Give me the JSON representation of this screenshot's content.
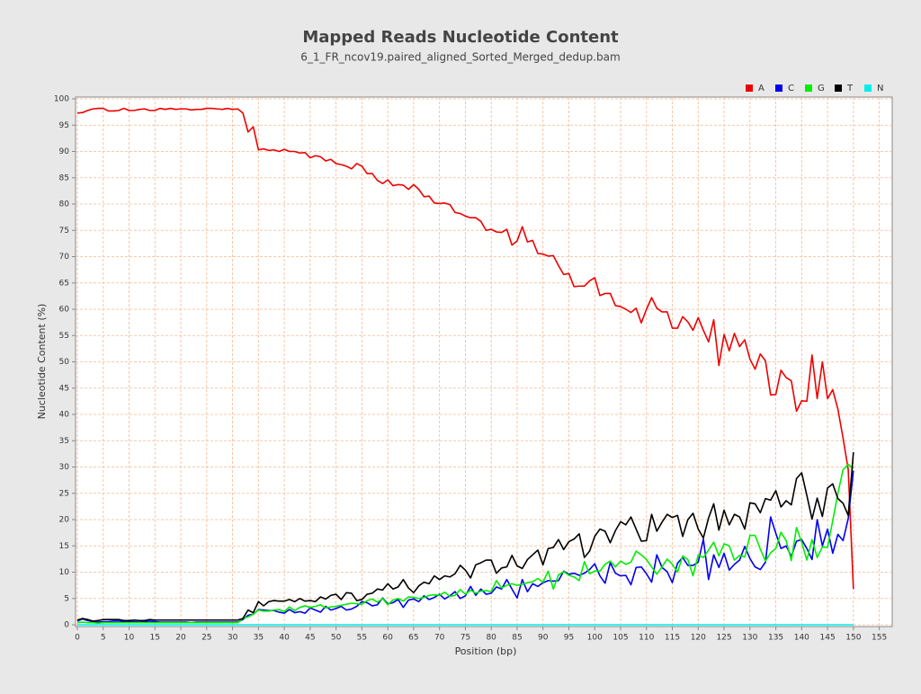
{
  "chart_data": {
    "type": "line",
    "title": "Mapped Reads Nucleotide Content",
    "subtitle": "6_1_FR_ncov19.paired_aligned_Sorted_Merged_dedup.bam",
    "x_label": "Position (bp)",
    "y_label": "Nucleotide Content (%)",
    "xlim": [
      0,
      157.5
    ],
    "ylim": [
      0,
      100
    ],
    "xticks": [
      0,
      5,
      10,
      15,
      20,
      25,
      30,
      35,
      40,
      45,
      50,
      55,
      60,
      65,
      70,
      75,
      80,
      85,
      90,
      95,
      100,
      105,
      110,
      115,
      120,
      125,
      130,
      135,
      140,
      145,
      150,
      155
    ],
    "yticks": [
      0,
      5,
      10,
      15,
      20,
      25,
      30,
      35,
      40,
      45,
      50,
      55,
      60,
      65,
      70,
      75,
      80,
      85,
      90,
      95,
      100
    ],
    "grid": true,
    "legend": "top-right",
    "x": [
      0,
      1,
      2,
      3,
      4,
      5,
      6,
      7,
      8,
      9,
      10,
      11,
      12,
      13,
      14,
      15,
      16,
      17,
      18,
      19,
      20,
      21,
      22,
      23,
      24,
      25,
      26,
      27,
      28,
      29,
      30,
      31,
      32,
      33,
      34,
      35,
      36,
      37,
      38,
      39,
      40,
      41,
      42,
      43,
      44,
      45,
      46,
      47,
      48,
      49,
      50,
      51,
      52,
      53,
      54,
      55,
      56,
      57,
      58,
      59,
      60,
      61,
      62,
      63,
      64,
      65,
      66,
      67,
      68,
      69,
      70,
      71,
      72,
      73,
      74,
      75,
      76,
      77,
      78,
      79,
      80,
      81,
      82,
      83,
      84,
      85,
      86,
      87,
      88,
      89,
      90,
      91,
      92,
      93,
      94,
      95,
      96,
      97,
      98,
      99,
      100,
      101,
      102,
      103,
      104,
      105,
      106,
      107,
      108,
      109,
      110,
      111,
      112,
      113,
      114,
      115,
      116,
      117,
      118,
      119,
      120,
      121,
      122,
      123,
      124,
      125,
      126,
      127,
      128,
      129,
      130,
      131,
      132,
      133,
      134,
      135,
      136,
      137,
      138,
      139,
      140,
      141,
      142,
      143,
      144,
      145,
      146,
      147,
      148,
      149,
      150
    ],
    "series": [
      {
        "name": "A",
        "color": "#ee0000",
        "values": [
          97.3,
          97.4,
          97.8,
          98.1,
          98.2,
          98.2,
          97.7,
          97.7,
          97.8,
          98.2,
          97.8,
          97.8,
          98,
          98.1,
          97.8,
          97.8,
          98.2,
          98,
          98.2,
          98,
          98.1,
          98.1,
          97.9,
          98,
          98,
          98.2,
          98.2,
          98.1,
          98,
          98.2,
          98,
          98.1,
          97.3,
          93.7,
          94.7,
          90.3,
          90.5,
          90.2,
          90.3,
          90,
          90.4,
          90,
          90,
          89.7,
          89.8,
          88.8,
          89.2,
          89,
          88.2,
          88.5,
          87.7,
          87.5,
          87.2,
          86.7,
          87.7,
          87.2,
          85.8,
          85.8,
          84.5,
          83.9,
          84.6,
          83.5,
          83.7,
          83.6,
          82.8,
          83.7,
          82.8,
          81.4,
          81.5,
          80.2,
          80.1,
          80.2,
          79.9,
          78.4,
          78.2,
          77.7,
          77.4,
          77.4,
          76.7,
          75,
          75.2,
          74.7,
          74.6,
          75.2,
          72.2,
          73,
          75.7,
          72.8,
          73.1,
          70.6,
          70.5,
          70.1,
          70.2,
          68.3,
          66.6,
          66.8,
          64.3,
          64.4,
          64.4,
          65.4,
          66,
          62.6,
          63,
          63,
          60.7,
          60.5,
          60,
          59.4,
          60.2,
          57.4,
          60,
          62.2,
          60.2,
          59.5,
          59.5,
          56.4,
          56.4,
          58.6,
          57.6,
          56,
          58.4,
          56,
          53.8,
          58,
          49.3,
          55.2,
          52.1,
          55.4,
          52.9,
          54.2,
          50.5,
          48.6,
          51.5,
          50.2,
          43.7,
          43.8,
          48.4,
          47,
          46.4,
          40.6,
          42.6,
          42.5,
          51.3,
          43,
          50,
          43,
          44.7,
          41,
          35.5,
          29.5,
          6.8
        ]
      },
      {
        "name": "C",
        "color": "#0000ee",
        "values": [
          0.7,
          1.1,
          0.8,
          0.6,
          0.5,
          0.6,
          0.6,
          0.7,
          0.7,
          0.6,
          0.6,
          0.6,
          0.5,
          0.6,
          0.7,
          0.6,
          0.5,
          0.5,
          0.5,
          0.5,
          0.5,
          0.5,
          0.4,
          0.5,
          0.5,
          0.5,
          0.5,
          0.5,
          0.5,
          0.5,
          0.5,
          0.5,
          1,
          1.8,
          2,
          2.9,
          2.8,
          2.7,
          2.7,
          2.4,
          2.2,
          2.9,
          2.3,
          2.5,
          2.2,
          3.2,
          2.8,
          2.4,
          3.5,
          2.8,
          3.1,
          3.5,
          2.8,
          3,
          3.5,
          4.4,
          4.2,
          3.6,
          3.8,
          5.1,
          4,
          4.2,
          4.8,
          3.3,
          4.7,
          4.9,
          4.4,
          5.5,
          4.8,
          5.2,
          5.8,
          4.9,
          5.5,
          6.3,
          5,
          5.5,
          7.3,
          5.6,
          6.8,
          5.8,
          6,
          7.2,
          6.8,
          8.6,
          6.8,
          5.1,
          8.6,
          6.3,
          7.8,
          7.3,
          8,
          8.4,
          8.3,
          8.4,
          10.2,
          9.6,
          9.8,
          9.4,
          9.8,
          10.5,
          11.6,
          9.3,
          7.9,
          11.8,
          9.8,
          9.3,
          9.4,
          7.6,
          10.9,
          11,
          9.7,
          8.1,
          13.3,
          10.9,
          10.1,
          8,
          11.7,
          12.8,
          11.3,
          11.3,
          11.9,
          16.3,
          8.6,
          13.3,
          10.9,
          13.6,
          10.4,
          11.5,
          12.3,
          14.9,
          12.6,
          11,
          10.5,
          11.9,
          20.5,
          17.4,
          14.5,
          15,
          13,
          15.9,
          16.2,
          14.5,
          12.4,
          20,
          15,
          18.2,
          13.6,
          17.2,
          16,
          20.2,
          29.3
        ]
      },
      {
        "name": "G",
        "color": "#00ee00",
        "values": [
          0.4,
          0.5,
          0.4,
          0.4,
          0.3,
          0.4,
          0.4,
          0.4,
          0.4,
          0.4,
          0.4,
          0.4,
          0.4,
          0.4,
          0.4,
          0.4,
          0.4,
          0.4,
          0.4,
          0.4,
          0.4,
          0.4,
          0.4,
          0.4,
          0.4,
          0.4,
          0.4,
          0.4,
          0.4,
          0.4,
          0.4,
          0.4,
          1.2,
          1.5,
          2,
          2.8,
          2.6,
          2.6,
          2.8,
          2.9,
          2.5,
          3.4,
          2.7,
          3.3,
          3.6,
          3.3,
          3.5,
          3.8,
          3.2,
          3.4,
          3.5,
          3.7,
          3.9,
          4.1,
          4,
          3.9,
          4.6,
          4.9,
          4.3,
          5,
          3.8,
          4.7,
          5,
          4.5,
          5.3,
          5.2,
          5,
          5.2,
          5.6,
          5.7,
          5.6,
          6.2,
          5.4,
          5.6,
          6.7,
          5.8,
          6.6,
          6,
          6.4,
          6.5,
          6.3,
          8.4,
          7,
          7.5,
          7.8,
          7.5,
          7.7,
          8,
          8.2,
          8.8,
          8.1,
          10.2,
          6.8,
          9.5,
          10.1,
          9.4,
          9.1,
          8.4,
          12,
          9.7,
          10.2,
          10.2,
          11.5,
          12.1,
          11,
          12.1,
          11.5,
          11.9,
          14,
          13.3,
          12.4,
          11,
          9.6,
          11,
          12.5,
          11.5,
          10,
          13.1,
          12.4,
          9.3,
          13.3,
          12.8,
          14.2,
          15.7,
          13.1,
          15.4,
          15,
          12.3,
          13.2,
          12.9,
          17,
          17,
          14.4,
          12.1,
          13.7,
          14.5,
          17.6,
          16,
          12.2,
          18.5,
          15.7,
          12.3,
          16.2,
          12.8,
          14.8,
          14.7,
          19.8,
          25,
          29.5,
          30.5,
          29.7
        ]
      },
      {
        "name": "T",
        "color": "#000000",
        "values": [
          0.9,
          1.2,
          1,
          0.7,
          0.8,
          1,
          1,
          1,
          1,
          0.8,
          0.8,
          0.9,
          0.8,
          0.8,
          1,
          0.9,
          0.9,
          0.9,
          0.9,
          0.9,
          0.9,
          0.9,
          0.9,
          0.9,
          0.9,
          0.9,
          0.9,
          0.9,
          0.9,
          0.9,
          0.9,
          0.9,
          1.2,
          2.8,
          2.3,
          4.4,
          3.6,
          4.4,
          4.6,
          4.5,
          4.5,
          4.8,
          4.4,
          5,
          4.5,
          4.6,
          4.4,
          5.3,
          4.9,
          5.6,
          5.8,
          4.8,
          6.1,
          6,
          4.6,
          4.8,
          5.8,
          6,
          6.8,
          6.6,
          7.8,
          6.8,
          7.2,
          8.6,
          7,
          6.1,
          7.4,
          8.1,
          7.8,
          9.3,
          8.6,
          9.3,
          9.1,
          9.7,
          11.3,
          10.4,
          8.9,
          11.4,
          11.8,
          12.3,
          12.3,
          9.8,
          10.8,
          11,
          13.2,
          11.2,
          10.7,
          12.4,
          13.3,
          14.2,
          11.4,
          14.5,
          14.7,
          16.2,
          14.3,
          15.8,
          16.3,
          17.3,
          12.8,
          14,
          16.8,
          18.2,
          17.8,
          15.6,
          17.9,
          19.6,
          19,
          20.5,
          18.2,
          15.9,
          16,
          21,
          17.8,
          19.5,
          21,
          20.4,
          20.8,
          16.8,
          20,
          21.2,
          18.2,
          16.5,
          20.3,
          23,
          18,
          21.8,
          19,
          21,
          20.5,
          18.2,
          23.2,
          23,
          21.3,
          24,
          23.7,
          25.5,
          22.4,
          23.6,
          22.8,
          27.8,
          28.9,
          24.6,
          20.1,
          24.1,
          20.6,
          26,
          26.8,
          24,
          23.1,
          20.8,
          32.8
        ]
      },
      {
        "name": "N",
        "color": "#00eeee",
        "values": [
          0,
          0,
          0,
          0,
          0,
          0,
          0,
          0,
          0,
          0,
          0,
          0,
          0,
          0,
          0,
          0,
          0,
          0,
          0,
          0,
          0,
          0,
          0,
          0,
          0,
          0,
          0,
          0,
          0,
          0,
          0,
          0,
          0,
          0,
          0,
          0,
          0,
          0,
          0,
          0,
          0,
          0,
          0,
          0,
          0,
          0,
          0,
          0,
          0,
          0,
          0,
          0,
          0,
          0,
          0,
          0,
          0,
          0,
          0,
          0,
          0,
          0,
          0,
          0,
          0,
          0,
          0,
          0,
          0,
          0,
          0,
          0,
          0,
          0,
          0,
          0,
          0,
          0,
          0,
          0,
          0,
          0,
          0,
          0,
          0,
          0,
          0,
          0,
          0,
          0,
          0,
          0,
          0,
          0,
          0,
          0,
          0,
          0,
          0,
          0,
          0,
          0,
          0,
          0,
          0,
          0,
          0,
          0,
          0,
          0,
          0,
          0,
          0,
          0,
          0,
          0,
          0,
          0,
          0,
          0,
          0,
          0,
          0,
          0,
          0,
          0,
          0,
          0,
          0,
          0,
          0,
          0,
          0,
          0,
          0,
          0,
          0,
          0,
          0,
          0,
          0,
          0,
          0,
          0,
          0,
          0,
          0,
          0,
          0,
          0,
          0
        ]
      }
    ]
  }
}
